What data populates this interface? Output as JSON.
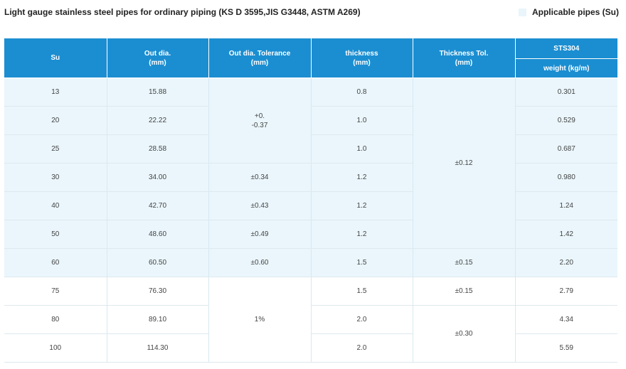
{
  "title": "Light gauge stainless steel pipes for ordinary piping (KS D 3595,JIS G3448, ASTM A269)",
  "legend": {
    "label": "Applicable pipes (Su)",
    "color": "#e9f5fb"
  },
  "colors": {
    "header": "#1b8ed1",
    "applicable_row": "#eaf6fc"
  },
  "headers": {
    "su": "Su",
    "od": "Out dia.\n(mm)",
    "od_tol": "Out dia. Tolerance\n(mm)",
    "thickness": "thickness\n(mm)",
    "thickness_tol": "Thickness Tol.\n(mm)",
    "group": "STS304",
    "weight": "weight (kg/m)"
  },
  "rows": [
    {
      "su": "13",
      "od": "15.88",
      "thickness": "0.8",
      "weight": "0.301"
    },
    {
      "su": "20",
      "od": "22.22",
      "thickness": "1.0",
      "weight": "0.529"
    },
    {
      "su": "25",
      "od": "28.58",
      "thickness": "1.0",
      "weight": "0.687"
    },
    {
      "su": "30",
      "od": "34.00",
      "thickness": "1.2",
      "weight": "0.980"
    },
    {
      "su": "40",
      "od": "42.70",
      "thickness": "1.2",
      "weight": "1.24"
    },
    {
      "su": "50",
      "od": "48.60",
      "thickness": "1.2",
      "weight": "1.42"
    },
    {
      "su": "60",
      "od": "60.50",
      "thickness": "1.5",
      "weight": "2.20"
    },
    {
      "su": "75",
      "od": "76.30",
      "thickness": "1.5",
      "weight": "2.79"
    },
    {
      "su": "80",
      "od": "89.10",
      "thickness": "2.0",
      "weight": "4.34"
    },
    {
      "su": "100",
      "od": "114.30",
      "thickness": "2.0",
      "weight": "5.59"
    }
  ],
  "od_tolerance": {
    "group_13_25": "+0.\n-0.37",
    "su30": "±0.34",
    "su40": "±0.43",
    "su50": "±0.49",
    "su60": "±0.60",
    "group_75_100": "1%"
  },
  "thickness_tolerance": {
    "group_13_50": "±0.12",
    "su60": "±0.15",
    "su75": "±0.15",
    "group_80_100": "±0.30"
  }
}
